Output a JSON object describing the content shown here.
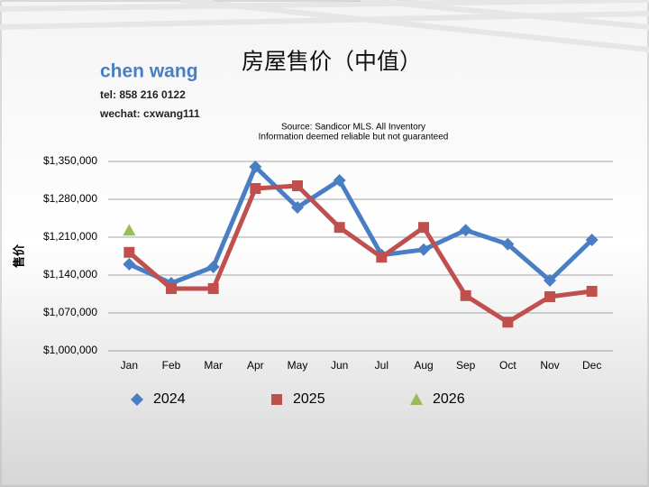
{
  "header": {
    "name": "chen wang",
    "tel": "tel: 858 216 0122",
    "wechat": "wechat: cxwang111"
  },
  "chart_data": {
    "type": "line",
    "title": "房屋售价（中值）",
    "subtitle": [
      "Source: Sandicor MLS. All Inventory",
      "Information deemed reliable but not guaranteed"
    ],
    "ylabel": "售价",
    "categories": [
      "Jan",
      "Feb",
      "Mar",
      "Apr",
      "May",
      "Jun",
      "Jul",
      "Aug",
      "Sep",
      "Oct",
      "Nov",
      "Dec"
    ],
    "series": [
      {
        "name": "2024",
        "color": "#4a7ec4",
        "marker": "diamond",
        "values": [
          1160000,
          1125000,
          1155000,
          1340000,
          1265000,
          1315000,
          1177000,
          1187000,
          1223000,
          1197000,
          1130000,
          1205000
        ]
      },
      {
        "name": "2025",
        "color": "#c0504d",
        "marker": "square",
        "values": [
          1182000,
          1115000,
          1115000,
          1300000,
          1305000,
          1228000,
          1173000,
          1228000,
          1102000,
          1053000,
          1100000,
          1110000
        ]
      },
      {
        "name": "2026",
        "color": "#9bbb59",
        "marker": "triangle",
        "values": [
          1223000,
          null,
          null,
          null,
          null,
          null,
          null,
          null,
          null,
          null,
          null,
          null
        ]
      }
    ],
    "ylim": [
      1000000,
      1350000
    ],
    "yticks": [
      {
        "value": 1000000,
        "label": "$1,000,000"
      },
      {
        "value": 1070000,
        "label": "$1,070,000"
      },
      {
        "value": 1140000,
        "label": "$1,140,000"
      },
      {
        "value": 1210000,
        "label": "$1,210,000"
      },
      {
        "value": 1280000,
        "label": "$1,280,000"
      },
      {
        "value": 1350000,
        "label": "$1,350,000"
      }
    ],
    "grid": true,
    "legend": "bottom"
  }
}
